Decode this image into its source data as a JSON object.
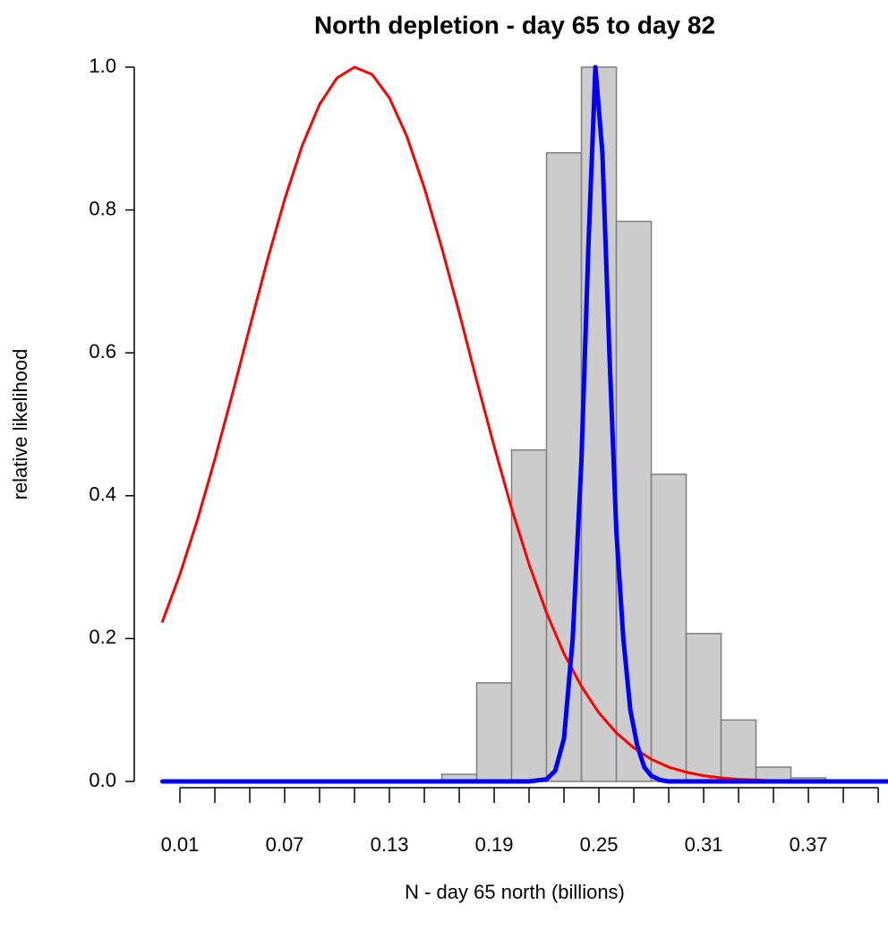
{
  "chart_data": {
    "type": "histogram",
    "title": "North depletion - day 65 to day 82",
    "xlabel": "N - day 65 north  (billions)",
    "ylabel": "relative likelihood",
    "bins": [
      0.16,
      0.18,
      0.2,
      0.22,
      0.24,
      0.26,
      0.28,
      0.3,
      0.32,
      0.34,
      0.36,
      0.38
    ],
    "counts": [
      0.01,
      0.138,
      0.464,
      0.88,
      1.0,
      0.784,
      0.43,
      0.207,
      0.086,
      0.02,
      0.005
    ],
    "color": "#cccccc",
    "edgecolor": "#7f7f7f",
    "series": [
      {
        "color": "#ff0000",
        "linewidth": 3,
        "x": [
          0,
          0.01,
          0.02,
          0.03,
          0.04,
          0.05,
          0.06,
          0.07,
          0.08,
          0.09,
          0.1,
          0.11,
          0.12,
          0.13,
          0.14,
          0.15,
          0.16,
          0.17,
          0.18,
          0.19,
          0.2,
          0.21,
          0.22,
          0.23,
          0.24,
          0.25,
          0.26,
          0.27,
          0.28,
          0.29,
          0.3,
          0.31,
          0.32,
          0.33,
          0.34,
          0.35,
          0.36,
          0.38,
          0.4
        ],
        "values": [
          0.224,
          0.29,
          0.366,
          0.451,
          0.542,
          0.636,
          0.729,
          0.815,
          0.89,
          0.948,
          0.985,
          1.0,
          0.99,
          0.957,
          0.903,
          0.831,
          0.747,
          0.656,
          0.561,
          0.469,
          0.382,
          0.304,
          0.236,
          0.179,
          0.133,
          0.096,
          0.068,
          0.047,
          0.031,
          0.02,
          0.013,
          0.008,
          0.005,
          0.003,
          0.002,
          0.001,
          0,
          0,
          0
        ]
      },
      {
        "color": "#0000ff",
        "linewidth": 5,
        "x": [
          0,
          0.21,
          0.22,
          0.225,
          0.23,
          0.235,
          0.24,
          0.244,
          0.248,
          0.252,
          0.256,
          0.26,
          0.264,
          0.268,
          0.272,
          0.276,
          0.28,
          0.285,
          0.29,
          0.415
        ],
        "values": [
          0,
          0,
          0.003,
          0.015,
          0.06,
          0.2,
          0.45,
          0.75,
          1.0,
          0.88,
          0.6,
          0.35,
          0.2,
          0.1,
          0.05,
          0.02,
          0.008,
          0.002,
          0,
          0
        ]
      }
    ],
    "xlim": [
      0,
      0.4156
    ],
    "ylim": [
      0,
      1
    ],
    "xticks": [
      0.01,
      0.07,
      0.13,
      0.19,
      0.25,
      0.31,
      0.37
    ],
    "xminorticks": [
      0.03,
      0.05,
      0.09,
      0.11,
      0.15,
      0.17,
      0.21,
      0.23,
      0.27,
      0.29,
      0.33,
      0.35,
      0.39,
      0.41
    ],
    "yticks": [
      {
        "value": 0,
        "label": "0.0"
      },
      0.2,
      0.4,
      0.6,
      0.8,
      {
        "value": 1,
        "label": "1.0"
      }
    ]
  }
}
